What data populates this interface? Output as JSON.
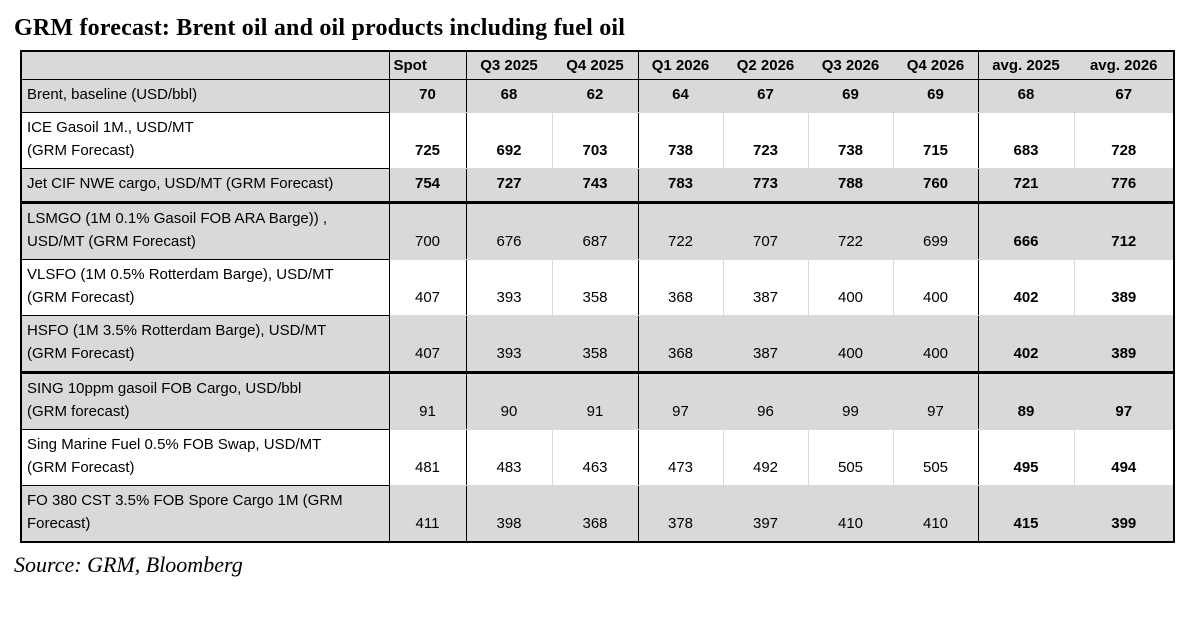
{
  "title": "GRM forecast: Brent oil and oil products including fuel oil",
  "source": "Source: GRM, Bloomberg",
  "colors": {
    "shaded_row_bg": "#d9d9d9",
    "border_dark": "#000000",
    "border_light": "#d9d9d9",
    "text": "#000000"
  },
  "chart_data": {
    "type": "table",
    "title": "GRM forecast: Brent oil and oil products including fuel oil",
    "columns": [
      "Spot",
      "Q3 2025",
      "Q4 2025",
      "Q1 2026",
      "Q2 2026",
      "Q3 2026",
      "Q4 2026",
      "avg. 2025",
      "avg. 2026"
    ],
    "rows": [
      {
        "label": "Brent, baseline (USD/bbl)",
        "values": [
          70,
          68,
          62,
          64,
          67,
          69,
          69,
          68,
          67
        ],
        "bold": "all",
        "shaded": true,
        "thick_border_after": false
      },
      {
        "label": "ICE Gasoil 1M., USD/MT\n(GRM Forecast)",
        "values": [
          725,
          692,
          703,
          738,
          723,
          738,
          715,
          683,
          728
        ],
        "bold": "all",
        "shaded": false,
        "thick_border_after": false
      },
      {
        "label": "Jet CIF NWE cargo, USD/MT (GRM Forecast)",
        "values": [
          754,
          727,
          743,
          783,
          773,
          788,
          760,
          721,
          776
        ],
        "bold": "all",
        "shaded": true,
        "thick_border_after": true
      },
      {
        "label": "LSMGO (1M 0.1% Gasoil FOB ARA Barge)) ,\nUSD/MT (GRM Forecast)",
        "values": [
          700,
          676,
          687,
          722,
          707,
          722,
          699,
          666,
          712
        ],
        "bold": "avg",
        "shaded": true,
        "thick_border_after": false
      },
      {
        "label": "VLSFO (1M 0.5% Rotterdam Barge), USD/MT\n(GRM Forecast)",
        "values": [
          407,
          393,
          358,
          368,
          387,
          400,
          400,
          402,
          389
        ],
        "bold": "avg",
        "shaded": false,
        "thick_border_after": false
      },
      {
        "label": "HSFO (1M 3.5% Rotterdam Barge), USD/MT\n(GRM Forecast)",
        "values": [
          407,
          393,
          358,
          368,
          387,
          400,
          400,
          402,
          389
        ],
        "bold": "avg",
        "shaded": true,
        "thick_border_after": true
      },
      {
        "label": "SING 10ppm gasoil FOB Cargo, USD/bbl\n(GRM forecast)",
        "values": [
          91,
          90,
          91,
          97,
          96,
          99,
          97,
          89,
          97
        ],
        "bold": "avg",
        "shaded": true,
        "thick_border_after": false
      },
      {
        "label": "Sing Marine Fuel 0.5% FOB Swap, USD/MT\n(GRM Forecast)",
        "values": [
          481,
          483,
          463,
          473,
          492,
          505,
          505,
          495,
          494
        ],
        "bold": "avg",
        "shaded": false,
        "thick_border_after": false
      },
      {
        "label": "FO 380 CST 3.5% FOB Spore Cargo 1M (GRM\nForecast)",
        "values": [
          411,
          398,
          368,
          378,
          397,
          410,
          410,
          415,
          399
        ],
        "bold": "avg",
        "shaded": true,
        "thick_border_after": false
      }
    ]
  }
}
